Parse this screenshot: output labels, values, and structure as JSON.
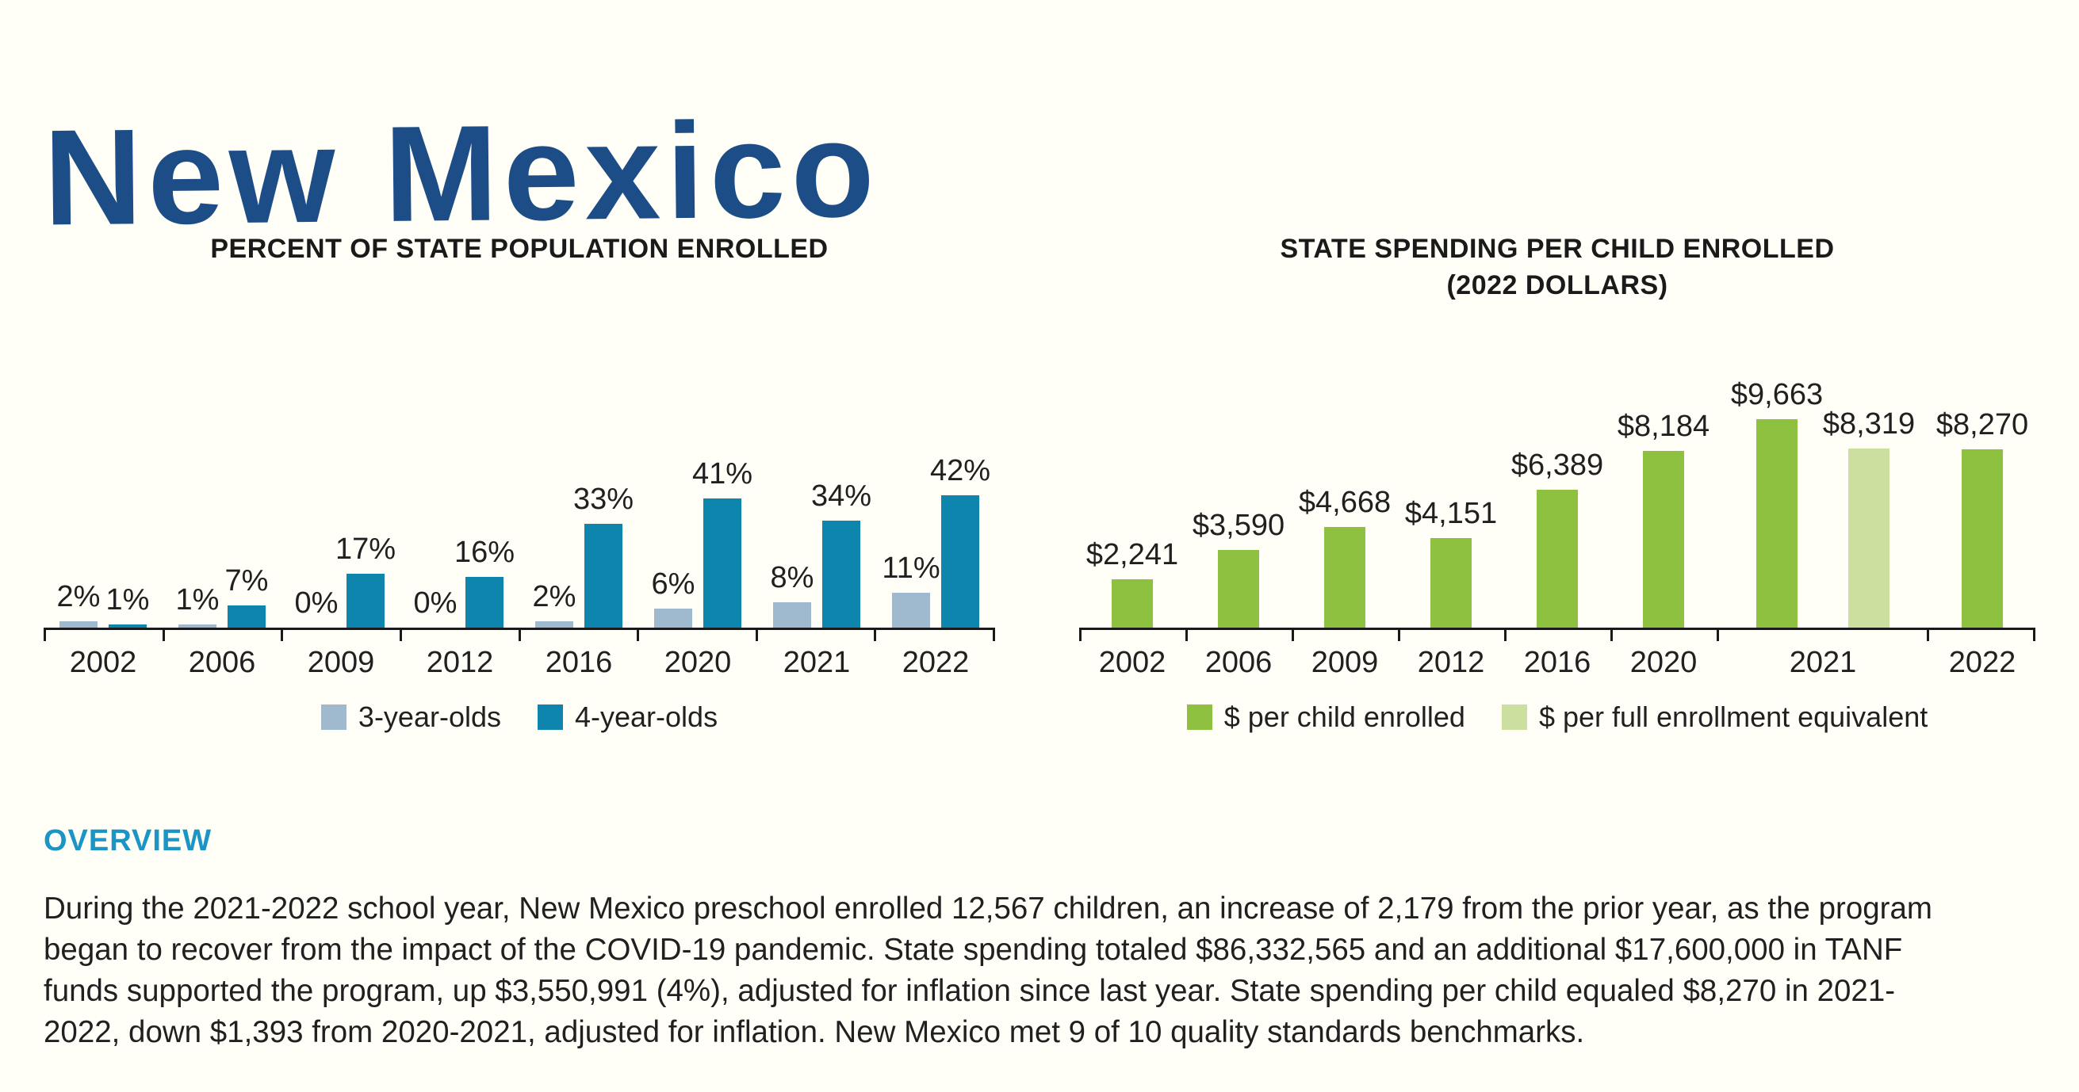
{
  "header": {
    "state_name": "New Mexico"
  },
  "colors": {
    "state_title_navy": "#1c4d87",
    "bar_3_year_olds": "#9fb9cf",
    "bar_4_year_olds": "#0e85ad",
    "bar_per_child": "#8dc13f",
    "bar_full_enrollment_equivalent": "#cddf9f",
    "overview_heading_blue": "#1a95c5",
    "text": "#231f20",
    "axis": "#1a1a1a",
    "background": "#fffef7"
  },
  "charts": {
    "enrollment": {
      "title": "PERCENT OF STATE POPULATION ENROLLED"
    },
    "spending": {
      "title_line1": "STATE SPENDING PER CHILD ENROLLED",
      "title_line2": "(2022 DOLLARS)"
    }
  },
  "chart_data": [
    {
      "type": "bar",
      "title": "PERCENT OF STATE POPULATION ENROLLED",
      "categories": [
        "2002",
        "2006",
        "2009",
        "2012",
        "2016",
        "2020",
        "2021",
        "2022"
      ],
      "series": [
        {
          "name": "3-year-olds",
          "color": "#9fb9cf",
          "values": [
            2,
            1,
            0,
            0,
            2,
            6,
            8,
            11
          ],
          "labels": [
            "2%",
            "1%",
            "0%",
            "0%",
            "2%",
            "6%",
            "8%",
            "11%"
          ]
        },
        {
          "name": "4-year-olds",
          "color": "#0e85ad",
          "values": [
            1,
            7,
            17,
            16,
            33,
            41,
            34,
            42
          ],
          "labels": [
            "1%",
            "7%",
            "17%",
            "16%",
            "33%",
            "41%",
            "34%",
            "42%"
          ]
        }
      ],
      "unit": "percent",
      "ylim": [
        0,
        50
      ],
      "grid": false,
      "value_labels": true,
      "legend_position": "bottom"
    },
    {
      "type": "bar",
      "title": "STATE SPENDING PER CHILD ENROLLED (2022 DOLLARS)",
      "categories": [
        "2002",
        "2006",
        "2009",
        "2012",
        "2016",
        "2020",
        "2021",
        "2022"
      ],
      "series": [
        {
          "name": "$ per child enrolled",
          "color": "#8dc13f",
          "values": [
            2241,
            3590,
            4668,
            4151,
            6389,
            8184,
            9663,
            8270
          ],
          "labels": [
            "$2,241",
            "$3,590",
            "$4,668",
            "$4,151",
            "$6,389",
            "$8,184",
            "$9,663",
            "$8,270"
          ]
        },
        {
          "name": "$ per full enrollment equivalent",
          "color": "#cddf9f",
          "values": [
            null,
            null,
            null,
            null,
            null,
            null,
            8319,
            null
          ],
          "labels": [
            null,
            null,
            null,
            null,
            null,
            null,
            "$8,319",
            null
          ]
        }
      ],
      "unit": "2022 dollars",
      "ylim": [
        0,
        10500
      ],
      "grid": false,
      "value_labels": true,
      "legend_position": "bottom"
    }
  ],
  "overview": {
    "heading": "OVERVIEW",
    "body": "During the 2021-2022 school year, New Mexico preschool enrolled 12,567 children, an increase of 2,179 from the prior year, as the program began to recover from the impact of the COVID-19 pandemic. State spending totaled $86,332,565 and an additional $17,600,000 in TANF funds supported the program, up $3,550,991 (4%), adjusted for inflation since last year. State spending per child equaled $8,270 in 2021-2022, down $1,393 from 2020-2021, adjusted for inflation. New Mexico met 9 of 10 quality standards benchmarks."
  }
}
